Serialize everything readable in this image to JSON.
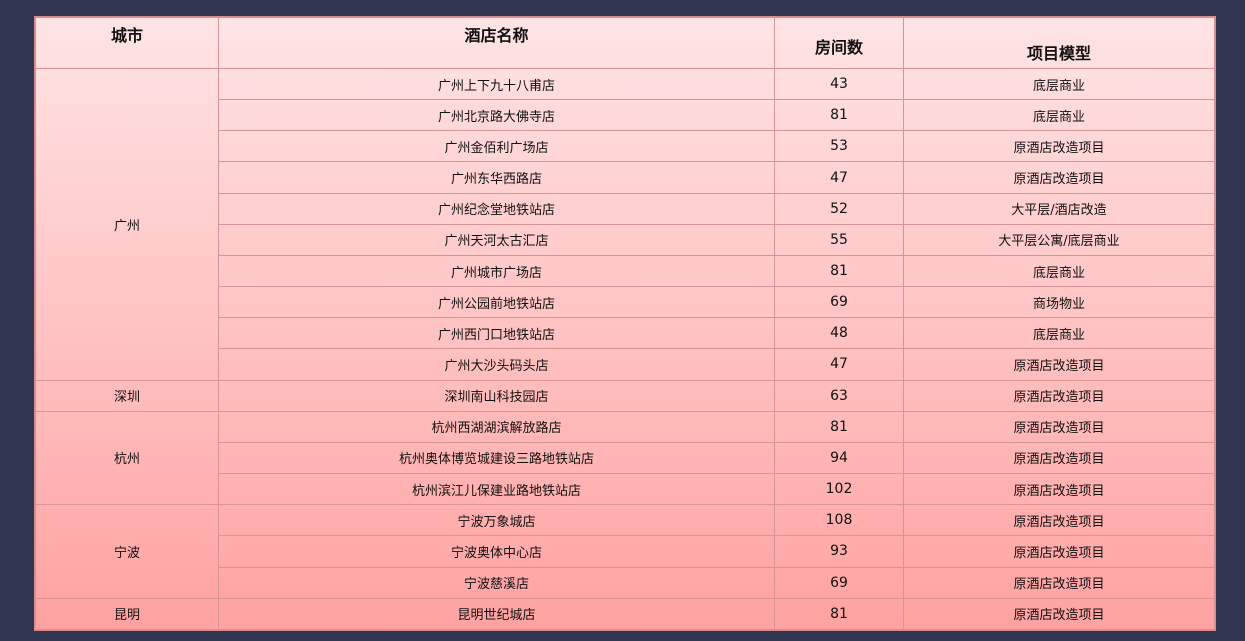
{
  "headers": {
    "city": "城市",
    "hotel": "酒店名称",
    "rooms": "房间数",
    "model": "项目模型"
  },
  "groups": [
    {
      "city": "广州",
      "rows": [
        {
          "hotel": "广州上下九十八甫店",
          "rooms": "43",
          "model": "底层商业"
        },
        {
          "hotel": "广州北京路大佛寺店",
          "rooms": "81",
          "model": "底层商业"
        },
        {
          "hotel": "广州金佰利广场店",
          "rooms": "53",
          "model": "原酒店改造项目"
        },
        {
          "hotel": "广州东华西路店",
          "rooms": "47",
          "model": "原酒店改造项目"
        },
        {
          "hotel": "广州纪念堂地铁站店",
          "rooms": "52",
          "model": "大平层/酒店改造"
        },
        {
          "hotel": "广州天河太古汇店",
          "rooms": "55",
          "model": "大平层公寓/底层商业"
        },
        {
          "hotel": "广州城市广场店",
          "rooms": "81",
          "model": "底层商业"
        },
        {
          "hotel": "广州公园前地铁站店",
          "rooms": "69",
          "model": "商场物业"
        },
        {
          "hotel": "广州西门口地铁站店",
          "rooms": "48",
          "model": "底层商业"
        },
        {
          "hotel": "广州大沙头码头店",
          "rooms": "47",
          "model": "原酒店改造项目"
        }
      ]
    },
    {
      "city": "深圳",
      "rows": [
        {
          "hotel": "深圳南山科技园店",
          "rooms": "63",
          "model": "原酒店改造项目"
        }
      ]
    },
    {
      "city": "杭州",
      "rows": [
        {
          "hotel": "杭州西湖湖滨解放路店",
          "rooms": "81",
          "model": "原酒店改造项目"
        },
        {
          "hotel": "杭州奥体博览城建设三路地铁站店",
          "rooms": "94",
          "model": "原酒店改造项目"
        },
        {
          "hotel": "杭州滨江儿保建业路地铁站店",
          "rooms": "102",
          "model": "原酒店改造项目"
        }
      ]
    },
    {
      "city": "宁波",
      "rows": [
        {
          "hotel": "宁波万象城店",
          "rooms": "108",
          "model": "原酒店改造项目"
        },
        {
          "hotel": "宁波奥体中心店",
          "rooms": "93",
          "model": "原酒店改造项目"
        },
        {
          "hotel": "宁波慈溪店",
          "rooms": "69",
          "model": "原酒店改造项目"
        }
      ]
    },
    {
      "city": "昆明",
      "rows": [
        {
          "hotel": "昆明世纪城店",
          "rooms": "81",
          "model": "原酒店改造项目"
        }
      ]
    }
  ]
}
